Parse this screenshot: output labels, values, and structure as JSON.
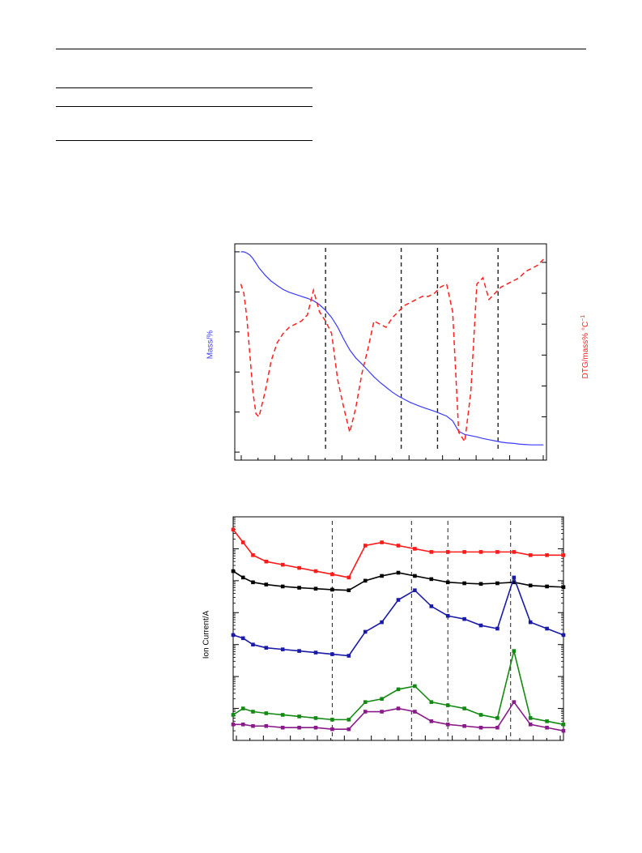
{
  "page": {
    "rules": [
      "header-rule",
      "table-top-rule",
      "table-mid-rule",
      "table-bottom-rule"
    ]
  },
  "chart_data": [
    {
      "type": "line",
      "title": "",
      "ylabel_left": "Mass/%",
      "ylabel_right": "DTG/mass% °C",
      "ylabel_right_sup": "−1",
      "colors": {
        "mass": "#3b3bff",
        "dtg": "#ff2020",
        "markers": "#000000"
      },
      "x": [
        0,
        1,
        2,
        3,
        4,
        5,
        6,
        8,
        10,
        12,
        14,
        16,
        18,
        20,
        22,
        24,
        26,
        28,
        30,
        32,
        34,
        36,
        38,
        40,
        42,
        44,
        46,
        48,
        50,
        52,
        54,
        56,
        58,
        60,
        62,
        64,
        66,
        68,
        70,
        72,
        74,
        76,
        78,
        80,
        82,
        84,
        86,
        88,
        90,
        92,
        94,
        96,
        98,
        100
      ],
      "series": [
        {
          "key": "mass",
          "values": [
            90,
            90,
            89.7,
            89.2,
            88.3,
            87.2,
            86,
            84.2,
            82.7,
            81.6,
            80.6,
            79.9,
            79.4,
            78.9,
            78.4,
            77.8,
            76.8,
            75.4,
            73.6,
            71.2,
            68.2,
            65.5,
            63.5,
            62.0,
            60.4,
            58.8,
            57.4,
            56.2,
            55.0,
            54.0,
            53.2,
            52.4,
            51.8,
            51.2,
            50.7,
            50.2,
            49.6,
            49.0,
            47.8,
            45.2,
            44.4,
            44.1,
            43.8,
            43.4,
            43.1,
            42.8,
            42.5,
            42.3,
            42.2,
            42.0,
            41.9,
            41.8,
            41.8,
            41.8
          ]
        },
        {
          "key": "dtg",
          "style": "dashed",
          "values": [
            0.3,
            0.0,
            -0.8,
            -2.0,
            -3.2,
            -3.9,
            -4.0,
            -3.2,
            -2.2,
            -1.6,
            -1.3,
            -1.1,
            -1.0,
            -0.9,
            -0.7,
            0.1,
            -0.6,
            -0.9,
            -1.3,
            -2.8,
            -3.7,
            -4.5,
            -3.7,
            -2.6,
            -1.8,
            -0.9,
            -1.0,
            -1.1,
            -0.8,
            -0.6,
            -0.4,
            -0.3,
            -0.2,
            -0.1,
            -0.1,
            0.0,
            0.2,
            0.3,
            -0.6,
            -4.5,
            -4.8,
            -3.2,
            0.3,
            0.5,
            -0.2,
            0.0,
            0.2,
            0.3,
            0.4,
            0.5,
            0.7,
            0.8,
            0.9,
            1.1
          ]
        }
      ],
      "dashed_markers_x": [
        28,
        53,
        65,
        85
      ],
      "xlim": [
        -2,
        101
      ],
      "ylim_left": [
        38,
        92
      ],
      "ylim_right": [
        -5.4,
        1.6
      ]
    },
    {
      "type": "line",
      "title": "",
      "ylabel": "Ion Current/A",
      "yscale": "log",
      "colors": {
        "markers": "#000000"
      },
      "x": [
        0,
        3,
        6,
        10,
        15,
        20,
        25,
        30,
        35,
        40,
        45,
        50,
        55,
        60,
        65,
        70,
        75,
        80,
        85,
        90,
        95,
        100
      ],
      "series": [
        {
          "key": "s1",
          "color": "#ff1a1a",
          "values": [
            2.6,
            2.2,
            1.8,
            1.6,
            1.5,
            1.4,
            1.3,
            1.2,
            1.1,
            2.1,
            2.2,
            2.1,
            2.0,
            1.9,
            1.9,
            1.9,
            1.9,
            1.9,
            1.9,
            1.8,
            1.8,
            1.8
          ]
        },
        {
          "key": "s2",
          "color": "#000000",
          "values": [
            1.3,
            1.1,
            0.95,
            0.88,
            0.82,
            0.78,
            0.75,
            0.72,
            0.7,
            1.0,
            1.15,
            1.25,
            1.15,
            1.05,
            0.95,
            0.92,
            0.9,
            0.92,
            0.95,
            0.85,
            0.82,
            0.8
          ]
        },
        {
          "key": "s3",
          "color": "#1a1aa8",
          "values": [
            -0.7,
            -0.8,
            -1.0,
            -1.1,
            -1.15,
            -1.2,
            -1.25,
            -1.3,
            -1.35,
            -0.6,
            -0.3,
            0.4,
            0.7,
            0.2,
            -0.1,
            -0.2,
            -0.4,
            -0.5,
            1.1,
            -0.3,
            -0.5,
            -0.7
          ]
        },
        {
          "key": "s4",
          "color": "#138a13",
          "values": [
            -3.2,
            -3.0,
            -3.1,
            -3.15,
            -3.2,
            -3.25,
            -3.3,
            -3.35,
            -3.35,
            -2.8,
            -2.7,
            -2.4,
            -2.3,
            -2.8,
            -2.9,
            -3.0,
            -3.2,
            -3.3,
            -1.2,
            -3.3,
            -3.4,
            -3.5
          ]
        },
        {
          "key": "s5",
          "color": "#8a1a8a",
          "values": [
            -3.5,
            -3.5,
            -3.55,
            -3.55,
            -3.6,
            -3.6,
            -3.6,
            -3.65,
            -3.65,
            -3.1,
            -3.1,
            -3.0,
            -3.1,
            -3.4,
            -3.5,
            -3.55,
            -3.6,
            -3.6,
            -2.8,
            -3.5,
            -3.6,
            -3.7
          ]
        }
      ],
      "dashed_markers_x": [
        30,
        54,
        65,
        84
      ],
      "xlim": [
        0,
        100
      ]
    }
  ]
}
